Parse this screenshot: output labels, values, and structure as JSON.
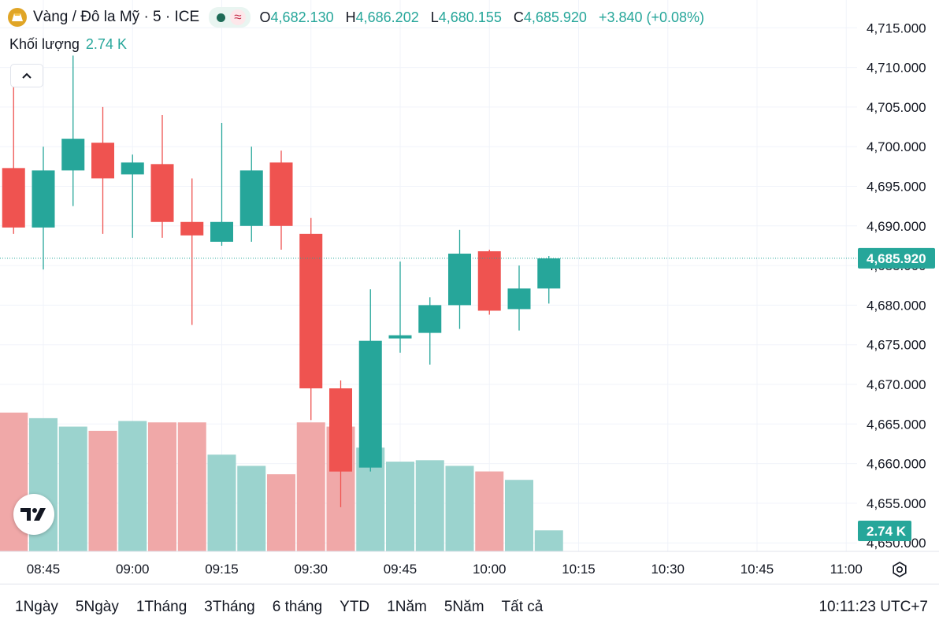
{
  "legend": {
    "title": "Vàng / Đô la Mỹ · 5 · ICE",
    "open_key": "O",
    "open": "4,682.130",
    "high_key": "H",
    "high": "4,686.202",
    "low_key": "L",
    "low": "4,680.155",
    "close_key": "C",
    "close": "4,685.920",
    "change": "+3.840 (+0.08%)"
  },
  "volume": {
    "label": "Khối lượng",
    "value": "2.74 K"
  },
  "icons": {
    "symbol": "gold-bar-icon",
    "live": "live-dot-icon",
    "compare": "wave-icon",
    "collapse": "chevron-up-icon",
    "logo": "tradingview-logo-icon",
    "settings": "settings-icon"
  },
  "colors": {
    "up": "#26a69a",
    "down": "#ef5350",
    "up_volume": "#9bd3ce",
    "down_volume": "#f0a8a8"
  },
  "chart_data": {
    "type": "candlestick",
    "interval": "5",
    "y_axis": {
      "range": [
        4647.5,
        4718.5
      ],
      "ticks": [
        "4,715.000",
        "4,710.000",
        "4,705.000",
        "4,700.000",
        "4,695.000",
        "4,690.000",
        "4,685.000",
        "4,680.000",
        "4,675.000",
        "4,670.000",
        "4,665.000",
        "4,660.000",
        "4,655.000",
        "4,650.000"
      ],
      "tick_values": [
        4715,
        4710,
        4705,
        4700,
        4695,
        4690,
        4685,
        4680,
        4675,
        4670,
        4665,
        4660,
        4655,
        4650
      ],
      "last_price_label": "4,685.920",
      "last_price": 4685.92,
      "volume_label": "2.74 K"
    },
    "x_axis": {
      "ticks": [
        "08:45",
        "09:00",
        "09:15",
        "09:30",
        "09:45",
        "10:00",
        "10:15",
        "10:30",
        "10:45",
        "11:00"
      ],
      "tick_times": [
        "08:45",
        "09:00",
        "09:15",
        "09:30",
        "09:45",
        "10:00",
        "10:15",
        "10:30",
        "10:45",
        "11:00"
      ]
    },
    "candles": [
      {
        "t": "08:40",
        "o": 4697.3,
        "h": 4708.0,
        "l": 4689.0,
        "c": 4689.8
      },
      {
        "t": "08:45",
        "o": 4689.8,
        "h": 4700.0,
        "l": 4684.5,
        "c": 4697.0
      },
      {
        "t": "08:50",
        "o": 4697.0,
        "h": 4711.5,
        "l": 4692.5,
        "c": 4701.0
      },
      {
        "t": "08:55",
        "o": 4700.5,
        "h": 4705.0,
        "l": 4689.0,
        "c": 4696.0
      },
      {
        "t": "09:00",
        "o": 4696.5,
        "h": 4699.0,
        "l": 4688.5,
        "c": 4698.0
      },
      {
        "t": "09:05",
        "o": 4697.8,
        "h": 4704.0,
        "l": 4688.5,
        "c": 4690.5
      },
      {
        "t": "09:10",
        "o": 4690.5,
        "h": 4696.0,
        "l": 4677.5,
        "c": 4688.8
      },
      {
        "t": "09:15",
        "o": 4688.0,
        "h": 4703.0,
        "l": 4687.5,
        "c": 4690.5
      },
      {
        "t": "09:20",
        "o": 4690.0,
        "h": 4700.0,
        "l": 4688.0,
        "c": 4697.0
      },
      {
        "t": "09:25",
        "o": 4698.0,
        "h": 4699.5,
        "l": 4687.0,
        "c": 4690.0
      },
      {
        "t": "09:30",
        "o": 4689.0,
        "h": 4691.0,
        "l": 4665.5,
        "c": 4669.5
      },
      {
        "t": "09:35",
        "o": 4669.5,
        "h": 4670.5,
        "l": 4654.5,
        "c": 4659.0
      },
      {
        "t": "09:40",
        "o": 4659.5,
        "h": 4682.0,
        "l": 4659.0,
        "c": 4675.5
      },
      {
        "t": "09:45",
        "o": 4675.8,
        "h": 4685.5,
        "l": 4674.0,
        "c": 4676.2
      },
      {
        "t": "09:50",
        "o": 4676.5,
        "h": 4681.0,
        "l": 4672.5,
        "c": 4680.0
      },
      {
        "t": "09:55",
        "o": 4680.0,
        "h": 4689.5,
        "l": 4677.0,
        "c": 4686.5
      },
      {
        "t": "10:00",
        "o": 4686.8,
        "h": 4687.0,
        "l": 4678.8,
        "c": 4679.3
      },
      {
        "t": "10:05",
        "o": 4679.5,
        "h": 4685.0,
        "l": 4676.8,
        "c": 4682.1
      },
      {
        "t": "10:10",
        "o": 4682.1,
        "h": 4686.2,
        "l": 4680.2,
        "c": 4685.9
      }
    ],
    "volume_relative": [
      0.99,
      0.95,
      0.89,
      0.86,
      0.93,
      0.92,
      0.92,
      0.69,
      0.61,
      0.55,
      0.92,
      0.89,
      0.74,
      0.64,
      0.65,
      0.61,
      0.57,
      0.51,
      0.15
    ]
  },
  "ranges": [
    "1Ngày",
    "5Ngày",
    "1Tháng",
    "3Tháng",
    "6 tháng",
    "YTD",
    "1Năm",
    "5Năm",
    "Tất cả"
  ],
  "clock": "10:11:23 UTC+7"
}
